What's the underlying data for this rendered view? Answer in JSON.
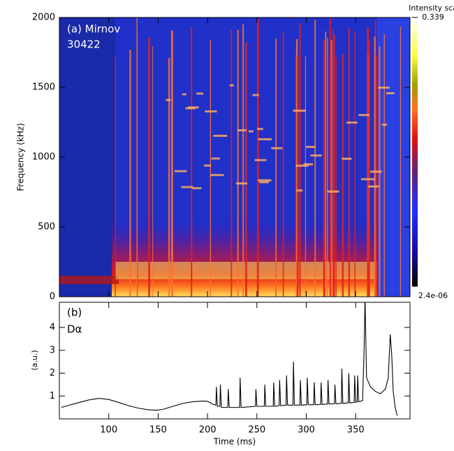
{
  "chart_data": [
    {
      "type": "heatmap",
      "title": "(a) Mirnov",
      "subtitle": "30422",
      "y_label": "Frequency (kHz)",
      "ylim": [
        0,
        2000
      ],
      "yticks": [
        0,
        500,
        1000,
        1500,
        2000
      ],
      "colorbar_title": "Intensity scale",
      "colorbar_ticks": [
        {
          "value": 2.4e-06,
          "label": "2.4e-06"
        },
        0.339
      ]
    },
    {
      "type": "line",
      "title": "(b)",
      "subtitle": "Dα",
      "y_label": "(a.u.)",
      "x_label": "Time (ms)",
      "xlim": [
        50,
        405
      ],
      "xticks": [
        100,
        150,
        200,
        250,
        300,
        350
      ],
      "ylim": [
        0,
        5.1
      ],
      "yticks": [
        1,
        2,
        3,
        4
      ],
      "x": [
        52,
        60,
        70,
        80,
        90,
        100,
        110,
        120,
        130,
        140,
        148,
        155,
        165,
        175,
        185,
        195,
        200,
        205,
        208.5,
        209,
        210,
        212.5,
        213,
        214,
        220.5,
        221,
        222,
        232.5,
        233,
        234,
        248.5,
        249,
        250,
        257.5,
        258,
        259,
        266.5,
        267,
        268,
        272.5,
        273,
        274,
        279.5,
        280,
        281,
        286.5,
        287,
        288,
        293.5,
        294,
        295,
        300.5,
        301,
        302,
        307.5,
        308,
        309,
        314.5,
        315,
        316,
        321.5,
        322,
        323,
        328.5,
        329,
        330,
        335.5,
        336,
        337,
        342.5,
        343,
        344,
        348.5,
        349,
        350,
        351.5,
        352,
        353,
        357,
        358.5,
        359.5,
        361,
        365,
        370,
        375,
        380,
        383,
        385,
        386.5,
        388,
        390,
        392
      ],
      "series": [
        {
          "color": "#000000",
          "values": [
            0.5,
            0.6,
            0.72,
            0.83,
            0.9,
            0.85,
            0.72,
            0.58,
            0.47,
            0.4,
            0.38,
            0.42,
            0.55,
            0.68,
            0.75,
            0.78,
            0.77,
            0.65,
            0.6,
            1.4,
            0.55,
            0.55,
            1.5,
            0.5,
            0.5,
            1.3,
            0.5,
            0.5,
            1.8,
            0.5,
            0.55,
            1.3,
            0.55,
            0.55,
            1.5,
            0.55,
            0.55,
            1.6,
            0.55,
            0.58,
            1.7,
            0.58,
            0.6,
            1.9,
            0.6,
            0.6,
            2.5,
            0.6,
            0.6,
            1.7,
            0.6,
            0.62,
            1.8,
            0.62,
            0.62,
            1.6,
            0.62,
            0.63,
            1.6,
            0.63,
            0.65,
            1.7,
            0.65,
            0.66,
            1.5,
            0.66,
            0.68,
            2.2,
            0.68,
            0.7,
            2.0,
            0.7,
            0.72,
            1.9,
            0.72,
            0.74,
            1.9,
            0.75,
            0.8,
            3,
            5.3,
            1.8,
            1.4,
            1.2,
            1.1,
            1.3,
            1.8,
            3.7,
            2.8,
            1.2,
            0.5,
            0.15
          ]
        }
      ]
    }
  ]
}
